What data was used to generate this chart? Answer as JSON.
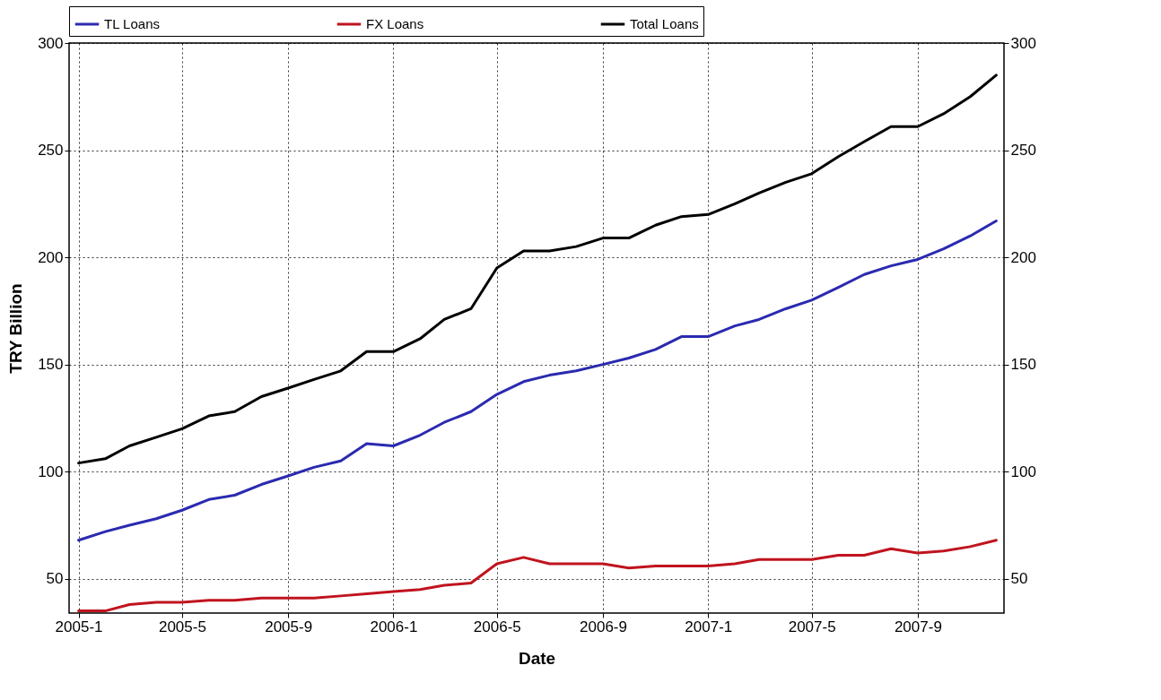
{
  "chart_data": {
    "type": "line",
    "xlabel": "Date",
    "ylabel": "TRY Billion",
    "x": [
      "2005-01",
      "2005-02",
      "2005-03",
      "2005-04",
      "2005-05",
      "2005-06",
      "2005-07",
      "2005-08",
      "2005-09",
      "2005-10",
      "2005-11",
      "2005-12",
      "2006-01",
      "2006-02",
      "2006-03",
      "2006-04",
      "2006-05",
      "2006-06",
      "2006-07",
      "2006-08",
      "2006-09",
      "2006-10",
      "2006-11",
      "2006-12",
      "2007-01",
      "2007-02",
      "2007-03",
      "2007-04",
      "2007-05",
      "2007-06",
      "2007-07",
      "2007-08",
      "2007-09",
      "2007-10",
      "2007-11",
      "2007-12"
    ],
    "series": [
      {
        "name": "TL Loans",
        "color": "#2a2ab0",
        "values": [
          68,
          72,
          75,
          78,
          82,
          87,
          89,
          94,
          98,
          102,
          105,
          113,
          112,
          117,
          123,
          128,
          136,
          142,
          145,
          147,
          150,
          153,
          157,
          163,
          163,
          168,
          171,
          176,
          180,
          186,
          192,
          196,
          199,
          204,
          210,
          217
        ]
      },
      {
        "name": "FX Loans",
        "color": "#c0141e",
        "values": [
          35,
          35,
          38,
          39,
          39,
          40,
          40,
          41,
          41,
          41,
          42,
          43,
          44,
          45,
          47,
          48,
          57,
          60,
          57,
          57,
          57,
          55,
          56,
          56,
          56,
          57,
          59,
          59,
          59,
          61,
          61,
          64,
          62,
          63,
          65,
          68
        ]
      },
      {
        "name": "Total Loans",
        "color": "#000000",
        "values": [
          104,
          106,
          112,
          116,
          120,
          126,
          128,
          135,
          139,
          143,
          147,
          156,
          156,
          162,
          171,
          176,
          195,
          203,
          203,
          205,
          209,
          209,
          215,
          219,
          220,
          225,
          230,
          235,
          239,
          247,
          254,
          261,
          261,
          267,
          275,
          285
        ]
      }
    ],
    "xlim": [
      "2004-12-21",
      "2007-12-10"
    ],
    "xticks": [
      {
        "value": "2005-01",
        "label": "2005-1"
      },
      {
        "value": "2005-05",
        "label": "2005-5"
      },
      {
        "value": "2005-09",
        "label": "2005-9"
      },
      {
        "value": "2006-01",
        "label": "2006-1"
      },
      {
        "value": "2006-05",
        "label": "2006-5"
      },
      {
        "value": "2006-09",
        "label": "2006-9"
      },
      {
        "value": "2007-01",
        "label": "2007-1"
      },
      {
        "value": "2007-05",
        "label": "2007-5"
      },
      {
        "value": "2007-09",
        "label": "2007-9"
      }
    ],
    "ylim": [
      34,
      300
    ],
    "yticks": [
      50,
      100,
      150,
      200,
      250,
      300
    ],
    "y2lim": [
      34,
      300
    ],
    "y2ticks": [
      50,
      100,
      150,
      200,
      250,
      300
    ],
    "grid": true,
    "legend": "top",
    "marker": "none",
    "line_style": "solid"
  }
}
